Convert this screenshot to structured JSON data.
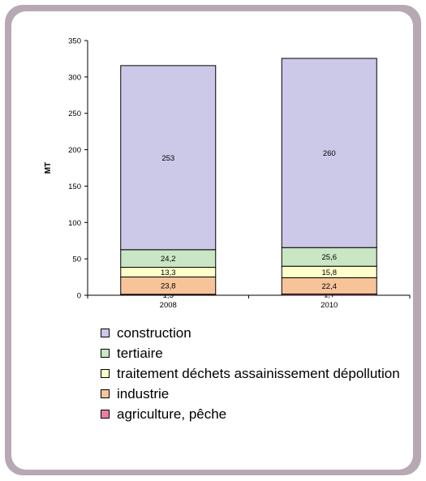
{
  "chart_data": {
    "type": "bar",
    "stacked": true,
    "categories": [
      "2008",
      "2010"
    ],
    "ylabel": "MT",
    "ylim": [
      0,
      350
    ],
    "yticks": [
      0,
      50,
      100,
      150,
      200,
      250,
      300,
      350
    ],
    "series": [
      {
        "name": "agriculture, pêche",
        "color": "#e97ea0",
        "values": [
          1.3,
          1.7
        ],
        "labels": [
          "1,3",
          "1,7"
        ]
      },
      {
        "name": "industrie",
        "color": "#f7c49a",
        "values": [
          23.8,
          22.4
        ],
        "labels": [
          "23,8",
          "22,4"
        ]
      },
      {
        "name": "traitement déchets assainissement dépollution",
        "color": "#ffffcc",
        "values": [
          13.3,
          15.8
        ],
        "labels": [
          "13,3",
          "15,8"
        ]
      },
      {
        "name": "tertiaire",
        "color": "#c9e6c5",
        "values": [
          24.2,
          25.6
        ],
        "labels": [
          "24,2",
          "25,6"
        ]
      },
      {
        "name": "construction",
        "color": "#ccc8e8",
        "values": [
          253,
          260
        ],
        "labels": [
          "253",
          "260"
        ]
      }
    ],
    "legend": {
      "position": "bottom",
      "items": [
        {
          "label": "construction",
          "color": "#ccc8e8"
        },
        {
          "label": "tertiaire",
          "color": "#c9e6c5"
        },
        {
          "label": "traitement déchets assainissement dépollution",
          "color": "#ffffcc"
        },
        {
          "label": "industrie",
          "color": "#f7c49a"
        },
        {
          "label": "agriculture, pêche",
          "color": "#e97ea0"
        }
      ]
    }
  }
}
